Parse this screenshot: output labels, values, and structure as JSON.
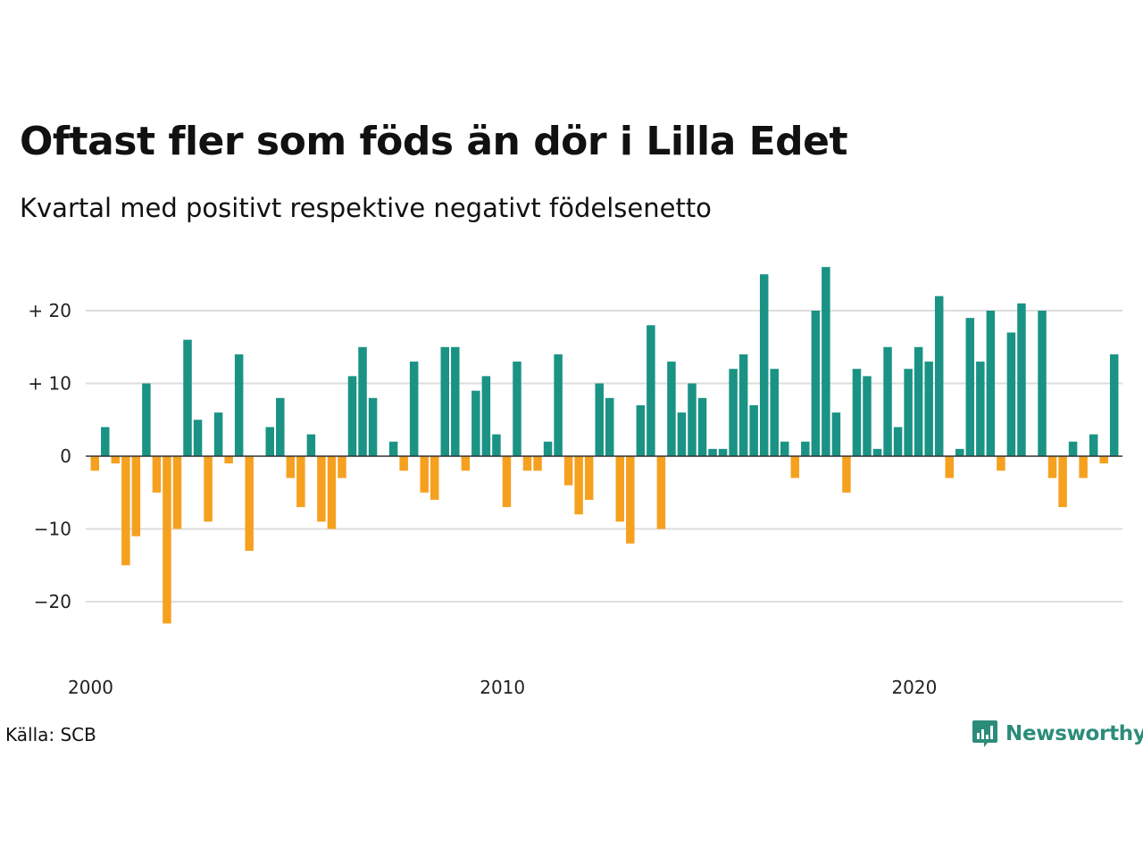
{
  "title": "Oftast fler som föds än dör i Lilla Edet",
  "subtitle": "Kvartal med positivt respektive negativt födelsenetto",
  "source": "Källa: SCB",
  "logo": {
    "text": "Newsworthy",
    "icon": "newsworthy-logo-icon"
  },
  "colors": {
    "positive": "#1a9385",
    "negative": "#f5a11f",
    "grid": "#dddddd",
    "zero": "#333333"
  },
  "chart_data": {
    "type": "bar",
    "ylim": [
      -27,
      28
    ],
    "yticks": [
      {
        "value": 20,
        "label": "+ 20"
      },
      {
        "value": 10,
        "label": "+ 10"
      },
      {
        "value": 0,
        "label": "0"
      },
      {
        "value": -10,
        "label": "−10"
      },
      {
        "value": -20,
        "label": "−20"
      }
    ],
    "xticks": [
      {
        "value": 2000,
        "label": "2000"
      },
      {
        "value": 2010,
        "label": "2010"
      },
      {
        "value": 2020,
        "label": "2020"
      }
    ],
    "start_year": 2000,
    "values": [
      -2,
      4,
      -1,
      -15,
      -11,
      10,
      -5,
      -23,
      -10,
      16,
      5,
      -9,
      6,
      -1,
      14,
      -13,
      0,
      4,
      8,
      -3,
      -7,
      3,
      -9,
      -10,
      -3,
      11,
      15,
      8,
      0,
      2,
      -2,
      13,
      -5,
      -6,
      15,
      15,
      -2,
      9,
      11,
      3,
      -7,
      13,
      -2,
      -2,
      2,
      14,
      -4,
      -8,
      -6,
      10,
      8,
      -9,
      -12,
      7,
      18,
      -10,
      13,
      6,
      10,
      8,
      1,
      1,
      12,
      14,
      7,
      25,
      12,
      2,
      -3,
      2,
      20,
      26,
      6,
      -5,
      12,
      11,
      1,
      15,
      4,
      12,
      15,
      13,
      22,
      -3,
      1,
      19,
      13,
      20,
      -2,
      17,
      21,
      0,
      20,
      -3,
      -7,
      2,
      -3,
      3,
      -1,
      14
    ]
  }
}
